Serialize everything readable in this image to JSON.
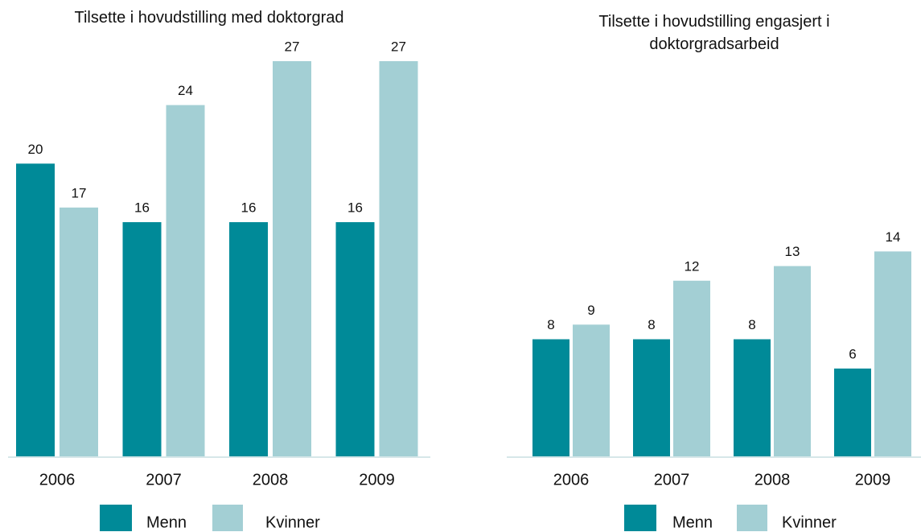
{
  "chart_data": [
    {
      "type": "bar",
      "title": "Tilsette i hovudstilling med doktorgrad",
      "categories": [
        "2006",
        "2007",
        "2008",
        "2009"
      ],
      "series": [
        {
          "name": "Menn",
          "color": "#008a98",
          "values": [
            20,
            16,
            16,
            16
          ]
        },
        {
          "name": "Kvinner",
          "color": "#a3cfd4",
          "values": [
            17,
            24,
            27,
            27
          ]
        }
      ]
    },
    {
      "type": "bar",
      "title": "Tilsette i hovudstilling engasjert i doktorgradsarbeid",
      "categories": [
        "2006",
        "2007",
        "2008",
        "2009"
      ],
      "series": [
        {
          "name": "Menn",
          "color": "#008a98",
          "values": [
            8,
            8,
            8,
            6
          ]
        },
        {
          "name": "Kvinner",
          "color": "#a3cfd4",
          "values": [
            9,
            12,
            13,
            14
          ]
        }
      ]
    }
  ]
}
